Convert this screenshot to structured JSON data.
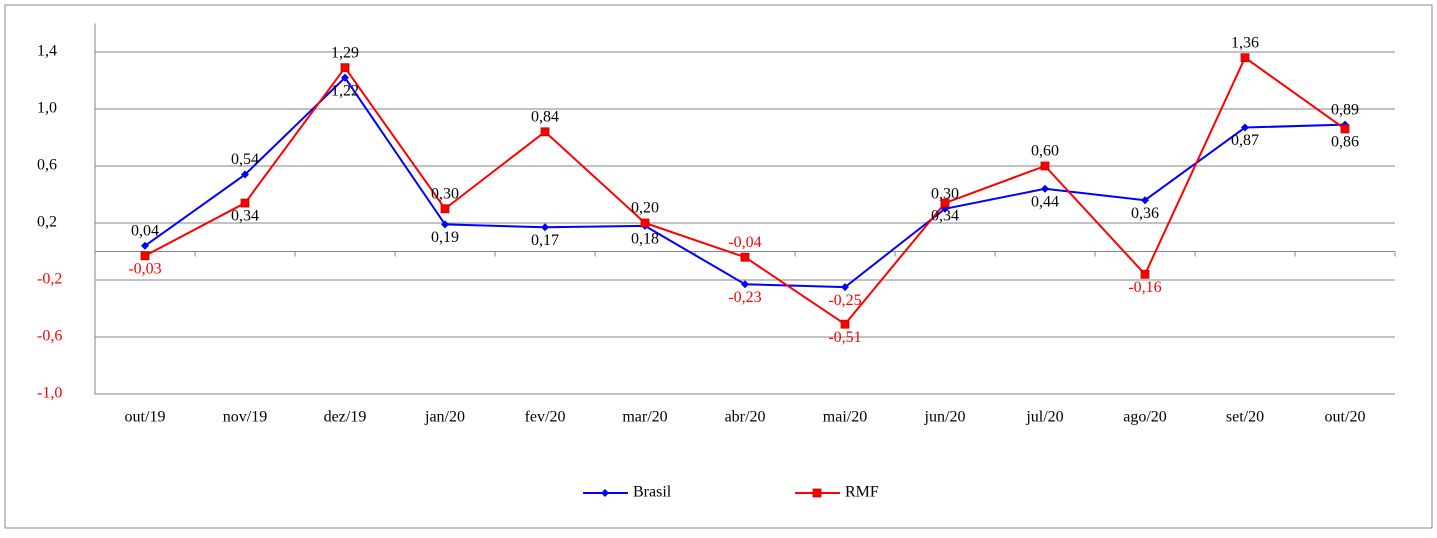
{
  "chart_data": {
    "type": "line",
    "categories": [
      "out/19",
      "nov/19",
      "dez/19",
      "jan/20",
      "fev/20",
      "mar/20",
      "abr/20",
      "mai/20",
      "jun/20",
      "jul/20",
      "ago/20",
      "set/20",
      "out/20"
    ],
    "series": [
      {
        "name": "Brasil",
        "color": "#0000ff",
        "marker": "diamond",
        "values": [
          0.04,
          0.54,
          1.22,
          0.19,
          0.17,
          0.18,
          -0.23,
          -0.25,
          0.3,
          0.44,
          0.36,
          0.87,
          0.89
        ],
        "value_labels": [
          "0,04",
          "0,54",
          "1,22",
          "0,19",
          "0,17",
          "0,18",
          "-0,23",
          "-0,25",
          "0,30",
          "0,44",
          "0,36",
          "0,87",
          "0,89"
        ]
      },
      {
        "name": "RMF",
        "color": "#ff0000",
        "marker": "square",
        "values": [
          -0.03,
          0.34,
          1.29,
          0.3,
          0.84,
          0.2,
          -0.04,
          -0.51,
          0.34,
          0.6,
          -0.16,
          1.36,
          0.86
        ],
        "value_labels": [
          "-0,03",
          "0,34",
          "1,29",
          "0,30",
          "0,84",
          "0,20",
          "-0,04",
          "-0,51",
          "0,34",
          "0,60",
          "-0,16",
          "1,36",
          "0,86"
        ]
      }
    ],
    "ylim": [
      -1.0,
      1.6
    ],
    "yticks": [
      {
        "value": -1.0,
        "label": "-1,0"
      },
      {
        "value": -0.6,
        "label": "-0,6"
      },
      {
        "value": -0.2,
        "label": "-0,2"
      },
      {
        "value": 0.2,
        "label": "0,2"
      },
      {
        "value": 0.6,
        "label": "0,6"
      },
      {
        "value": 1.0,
        "label": "1,0"
      },
      {
        "value": 1.4,
        "label": "1,4"
      }
    ],
    "grid": true,
    "legend": "bottom"
  }
}
